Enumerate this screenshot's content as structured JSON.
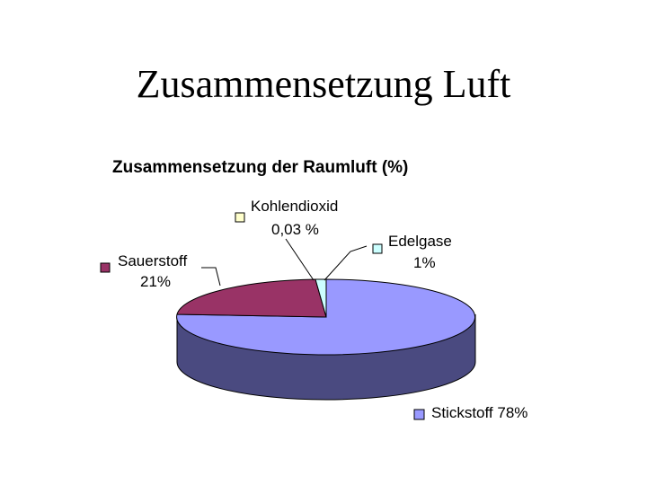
{
  "slide": {
    "title": "Zusammensetzung Luft"
  },
  "chart_data": {
    "type": "pie",
    "title": "Zusammensetzung der Raumluft (%)",
    "slices": [
      {
        "name": "Stickstoff",
        "value": 78,
        "label": "Stickstoff 78%",
        "color": "#9999ff"
      },
      {
        "name": "Sauerstoff",
        "value": 21,
        "label_name": "Sauerstoff",
        "label_value": "21%",
        "color": "#993366"
      },
      {
        "name": "Kohlendioxid",
        "value": 0.03,
        "label_name": "Kohlendioxid",
        "label_value": "0,03 %",
        "color": "#ffffcc"
      },
      {
        "name": "Edelgase",
        "value": 1,
        "label_name": "Edelgase",
        "label_value": "1%",
        "color": "#ccffff"
      }
    ],
    "side_color": "#4a4a80"
  }
}
